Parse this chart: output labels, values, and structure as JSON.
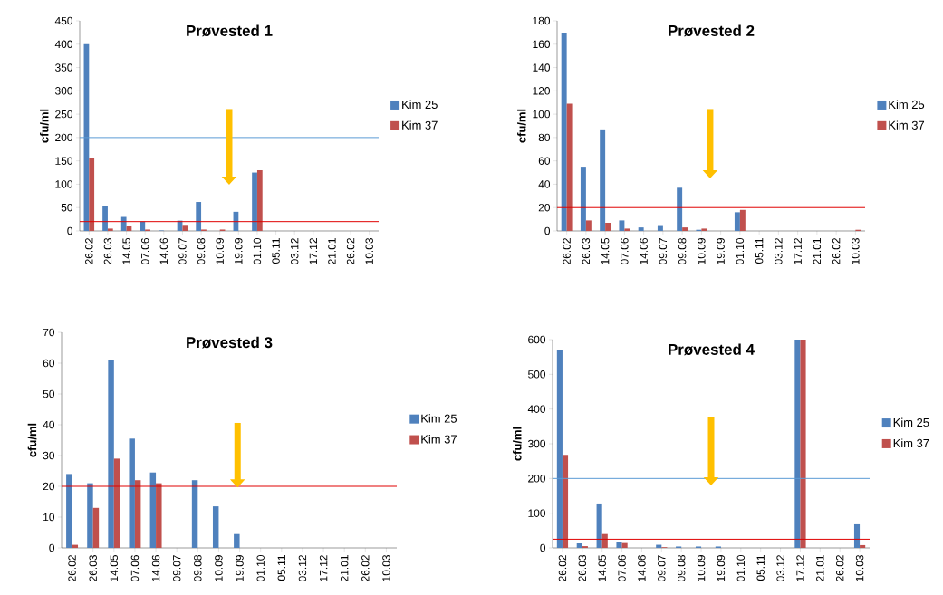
{
  "chart_data": [
    {
      "type": "bar",
      "title": "Prøvested 1",
      "ylabel": "cfu/ml",
      "categories": [
        "26.02",
        "26.03",
        "14.05",
        "07.06",
        "14.06",
        "09.07",
        "09.08",
        "10.09",
        "19.09",
        "01.10",
        "05.11",
        "03.12",
        "17.12",
        "21.01",
        "26.02",
        "10.03"
      ],
      "series": [
        {
          "name": "Kim 25",
          "color": "#4f81bd",
          "values": [
            400,
            53,
            30,
            20,
            1,
            22,
            62,
            null,
            41,
            125,
            null,
            null,
            null,
            null,
            null,
            null
          ]
        },
        {
          "name": "Kim 37",
          "color": "#c0504d",
          "values": [
            157,
            5,
            11,
            3,
            null,
            13,
            3,
            3,
            null,
            130,
            null,
            null,
            null,
            null,
            null,
            null
          ]
        }
      ],
      "ylim": [
        0,
        450
      ],
      "yticks": [
        0,
        50,
        100,
        150,
        200,
        250,
        300,
        350,
        400,
        450
      ],
      "ref_lines": [
        {
          "axis": "y",
          "value": 200,
          "color": "#5b9bd5"
        },
        {
          "axis": "y",
          "value": 20,
          "color": "#e00000"
        }
      ],
      "legend": "right"
    },
    {
      "type": "bar",
      "title": "Prøvested 2",
      "ylabel": "cfu/ml",
      "categories": [
        "26.02",
        "26.03",
        "14.05",
        "07.06",
        "14.06",
        "09.07",
        "09.08",
        "10.09",
        "19.09",
        "01.10",
        "05.11",
        "03.12",
        "17.12",
        "21.01",
        "26.02",
        "10.03"
      ],
      "series": [
        {
          "name": "Kim 25",
          "color": "#4f81bd",
          "values": [
            170,
            55,
            87,
            9,
            3,
            5,
            37,
            1,
            null,
            16,
            null,
            null,
            null,
            null,
            null,
            null
          ]
        },
        {
          "name": "Kim 37",
          "color": "#c0504d",
          "values": [
            109,
            9,
            7,
            2,
            null,
            null,
            3,
            2,
            null,
            18,
            null,
            null,
            null,
            null,
            null,
            1
          ]
        }
      ],
      "ylim": [
        0,
        180
      ],
      "yticks": [
        0,
        20,
        40,
        60,
        80,
        100,
        120,
        140,
        160,
        180
      ],
      "ref_lines": [
        {
          "axis": "y",
          "value": 20,
          "color": "#e00000"
        }
      ],
      "legend": "right"
    },
    {
      "type": "bar",
      "title": "Prøvested 3",
      "ylabel": "cfu/ml",
      "categories": [
        "26.02",
        "26.03",
        "14.05",
        "07.06",
        "14.06",
        "09.07",
        "09.08",
        "10.09",
        "19.09",
        "01.10",
        "05.11",
        "03.12",
        "17.12",
        "21.01",
        "26.02",
        "10.03"
      ],
      "series": [
        {
          "name": "Kim 25",
          "color": "#4f81bd",
          "values": [
            24,
            21,
            61,
            35.5,
            24.5,
            null,
            22,
            13.5,
            4.5,
            null,
            null,
            null,
            null,
            null,
            null,
            null
          ]
        },
        {
          "name": "Kim 37",
          "color": "#c0504d",
          "values": [
            1,
            13,
            29,
            22,
            21,
            null,
            null,
            null,
            null,
            null,
            null,
            null,
            null,
            null,
            null,
            null
          ]
        }
      ],
      "ylim": [
        0,
        70
      ],
      "yticks": [
        0,
        10,
        20,
        30,
        40,
        50,
        60,
        70
      ],
      "ref_lines": [
        {
          "axis": "y",
          "value": 20,
          "color": "#e00000"
        }
      ],
      "legend": "right"
    },
    {
      "type": "bar",
      "title": "Prøvested 4",
      "ylabel": "cfu/ml",
      "categories": [
        "26.02",
        "26.03",
        "14.05",
        "07.06",
        "14.06",
        "09.07",
        "09.08",
        "10.09",
        "19.09",
        "01.10",
        "05.11",
        "03.12",
        "17.12",
        "21.01",
        "26.02",
        "10.03"
      ],
      "series": [
        {
          "name": "Kim 25",
          "color": "#4f81bd",
          "values": [
            570,
            13,
            128,
            17,
            null,
            9,
            4,
            4,
            4,
            null,
            null,
            null,
            600,
            null,
            null,
            68
          ]
        },
        {
          "name": "Kim 37",
          "color": "#c0504d",
          "values": [
            268,
            5,
            40,
            14,
            null,
            2,
            null,
            null,
            null,
            null,
            null,
            null,
            600,
            null,
            null,
            8
          ]
        }
      ],
      "ylim": [
        0,
        600
      ],
      "yticks": [
        0,
        100,
        200,
        300,
        400,
        500,
        600
      ],
      "ref_lines": [
        {
          "axis": "y",
          "value": 200,
          "color": "#5b9bd5"
        },
        {
          "axis": "y",
          "value": 25,
          "color": "#e00000"
        }
      ],
      "legend": "right"
    }
  ]
}
